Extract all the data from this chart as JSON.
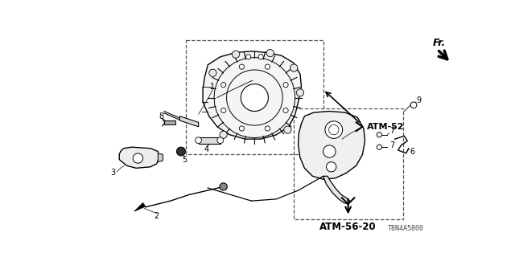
{
  "bg_color": "#ffffff",
  "fig_width": 6.4,
  "fig_height": 3.2,
  "dpi": 100,
  "atm52_label": "ATM-52",
  "atm5620_label": "ATM-56-20",
  "fr_label": "Fr.",
  "part_code": "T8N4A5800",
  "lw": 0.8
}
